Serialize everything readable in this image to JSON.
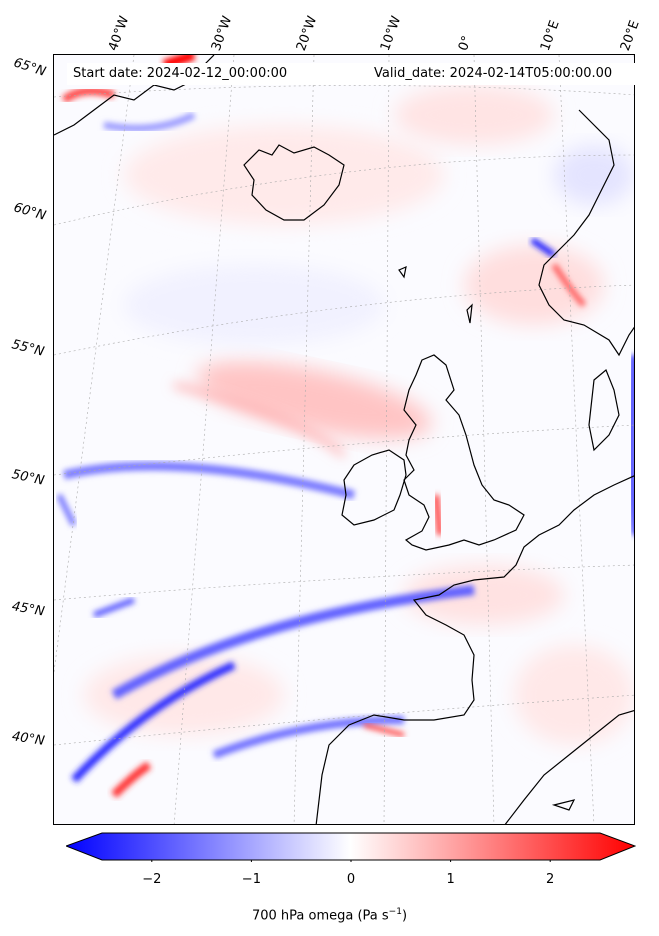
{
  "header": {
    "start_date": "Start date: 2024-02-12_00:00:00",
    "valid_date": "Valid_date: 2024-02-14T05:00:00.00"
  },
  "longitude_labels": [
    "40°W",
    "30°W",
    "20°W",
    "10°W",
    "0°",
    "10°E",
    "20°E"
  ],
  "latitude_labels": [
    "65°N",
    "60°N",
    "55°N",
    "50°N",
    "45°N",
    "40°N"
  ],
  "colorbar": {
    "ticks": [
      "−2",
      "−1",
      "0",
      "1",
      "2"
    ],
    "tick_values": [
      -2,
      -1,
      0,
      1,
      2
    ],
    "range": [
      -2.5,
      2.5
    ],
    "label": "700 hPa omega (Pa s",
    "label_exp": "−1",
    "label_close": ")",
    "cmap_low": "#0000ff",
    "cmap_mid": "#ffffff",
    "cmap_high": "#ff0000"
  }
}
